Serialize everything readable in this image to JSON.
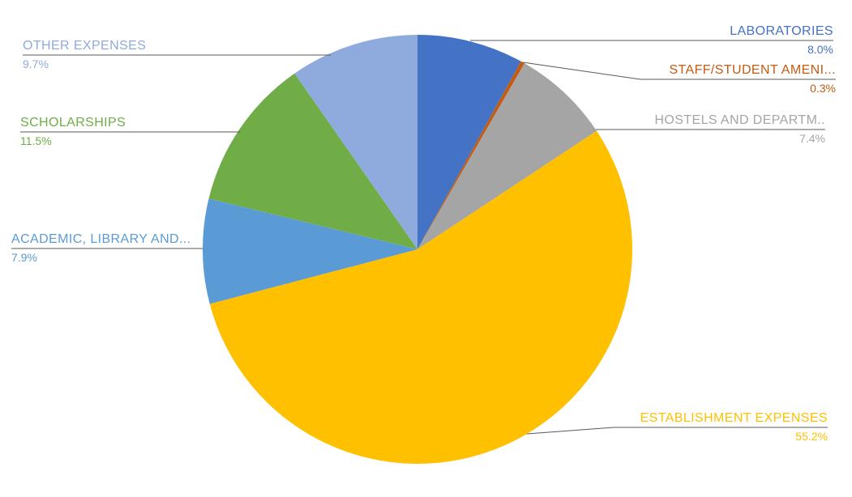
{
  "chart_data": {
    "type": "pie",
    "title": "",
    "legend_position": "none",
    "labels_style": "outside-with-leader-lines",
    "start_angle_deg": 0,
    "direction": "clockwise",
    "background_color": "#ffffff",
    "leader_line_color": "#595959",
    "slices": [
      {
        "label": "LABORATORIES",
        "value": 8.0,
        "pct": "8.0%",
        "color": "#4472C4"
      },
      {
        "label": "STAFF/STUDENT AMENI...",
        "value": 0.3,
        "pct": "0.3%",
        "color": "#C55A11"
      },
      {
        "label": "HOSTELS AND DEPARTM..",
        "value": 7.4,
        "pct": "7.4%",
        "color": "#A5A5A5"
      },
      {
        "label": "ESTABLISHMENT EXPENSES",
        "value": 55.2,
        "pct": "55.2%",
        "color": "#FFC000"
      },
      {
        "label": "ACADEMIC, LIBRARY AND...",
        "value": 7.9,
        "pct": "7.9%",
        "color": "#5B9BD5"
      },
      {
        "label": "SCHOLARSHIPS",
        "value": 11.5,
        "pct": "11.5%",
        "color": "#70AD47"
      },
      {
        "label": "OTHER EXPENSES",
        "value": 9.7,
        "pct": "9.7%",
        "color": "#8FAADC"
      }
    ]
  }
}
